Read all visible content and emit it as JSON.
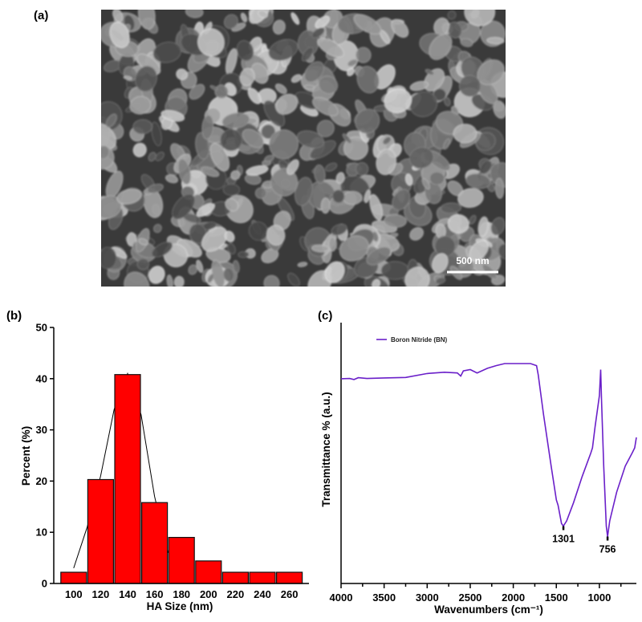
{
  "panels": {
    "a_label": "(a)",
    "b_label": "(b)",
    "c_label": "(c)"
  },
  "sem_image": {
    "scale_bar_label": "500 nm"
  },
  "chart_data": [
    {
      "type": "bar",
      "title": "",
      "xlabel": "HA Size (nm)",
      "ylabel": "Percent (%)",
      "categories": [
        "100",
        "120",
        "140",
        "160",
        "180",
        "200",
        "220",
        "240",
        "260"
      ],
      "values": [
        2.2,
        20.3,
        40.8,
        15.8,
        9.0,
        4.4,
        2.2,
        2.2,
        2.2
      ],
      "ylim": [
        0,
        50
      ],
      "yticks": [
        "0",
        "10",
        "20",
        "30",
        "40",
        "50"
      ],
      "bar_color": "#ff0000",
      "fit_curve": [
        [
          100,
          3
        ],
        [
          110,
          11
        ],
        [
          120,
          21
        ],
        [
          130,
          34
        ],
        [
          140,
          41
        ],
        [
          150,
          33
        ],
        [
          160,
          17
        ],
        [
          170,
          6
        ]
      ],
      "grid": false
    },
    {
      "type": "line",
      "title": "",
      "xlabel": "Wavenumbers (cm⁻¹)",
      "ylabel": "Transmittance % (a.u.)",
      "xlim": [
        4000,
        570
      ],
      "ylim": [
        0,
        100
      ],
      "xticks": [
        "4000",
        "3500",
        "3000",
        "2500",
        "2000",
        "1500",
        "1000"
      ],
      "legend": {
        "position": "top-left",
        "entries": [
          "Boron Nitride (BN)"
        ]
      },
      "series": [
        {
          "name": "Boron Nitride (BN)",
          "color": "#6a1fc9",
          "points": [
            [
              4000,
              78.5
            ],
            [
              3900,
              78.6
            ],
            [
              3850,
              78.2
            ],
            [
              3800,
              78.9
            ],
            [
              3700,
              78.6
            ],
            [
              3500,
              78.8
            ],
            [
              3250,
              79
            ],
            [
              3000,
              80.5
            ],
            [
              2800,
              81
            ],
            [
              2650,
              80.7
            ],
            [
              2610,
              79.5
            ],
            [
              2580,
              81.5
            ],
            [
              2500,
              82
            ],
            [
              2420,
              80.7
            ],
            [
              2300,
              82.5
            ],
            [
              2200,
              83.5
            ],
            [
              2100,
              84.3
            ],
            [
              1800,
              84.3
            ],
            [
              1730,
              83.5
            ],
            [
              1710,
              80
            ],
            [
              1650,
              65
            ],
            [
              1560,
              45
            ],
            [
              1500,
              32
            ],
            [
              1480,
              30
            ],
            [
              1440,
              23
            ],
            [
              1418,
              22
            ],
            [
              1380,
              24
            ],
            [
              1300,
              31
            ],
            [
              1200,
              41
            ],
            [
              1100,
              50
            ],
            [
              1080,
              52
            ],
            [
              1050,
              60
            ],
            [
              1000,
              72
            ],
            [
              985,
              82
            ],
            [
              975,
              70
            ],
            [
              950,
              45
            ],
            [
              920,
              22
            ],
            [
              905,
              18
            ],
            [
              880,
              24
            ],
            [
              800,
              35
            ],
            [
              700,
              45
            ],
            [
              620,
              50
            ],
            [
              590,
              52
            ],
            [
              570,
              56
            ]
          ]
        }
      ],
      "annotations": [
        {
          "label": "1301",
          "x": 1418,
          "y": 22
        },
        {
          "label": "756",
          "x": 905,
          "y": 18
        }
      ]
    }
  ]
}
